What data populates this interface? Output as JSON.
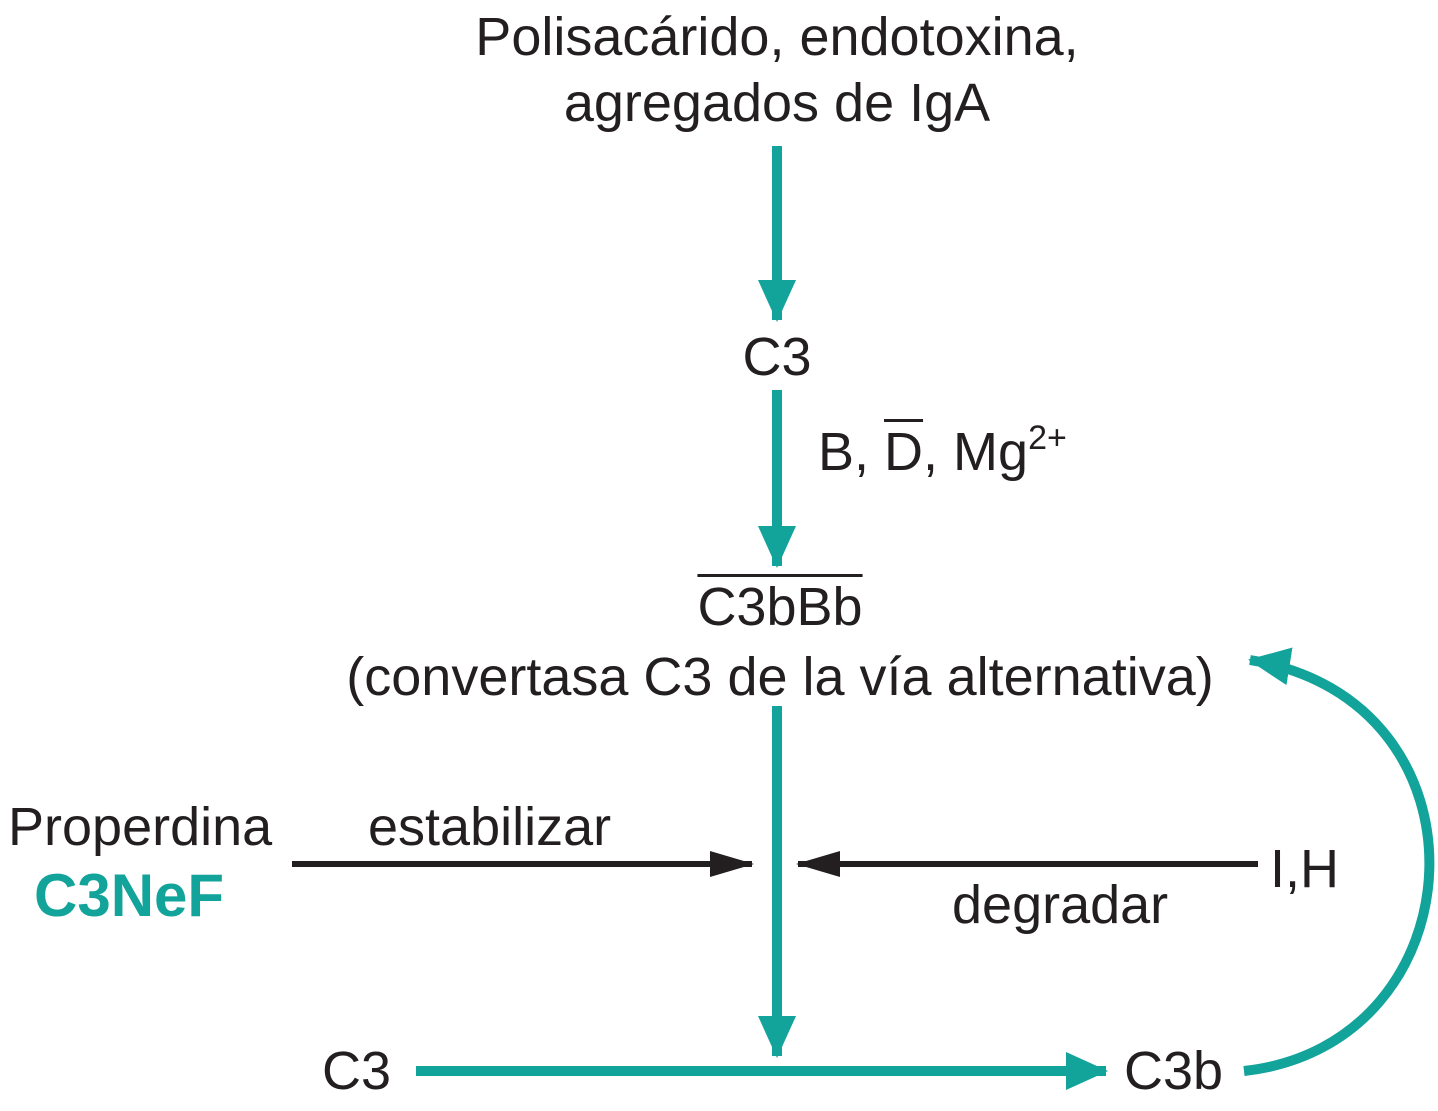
{
  "colors": {
    "teal": "#12a39a",
    "black": "#231f20",
    "background": "#ffffff"
  },
  "nodes": {
    "source_line1": "Polisacárido, endotoxina,",
    "source_line2": "agregados de IgA",
    "c3_top": "C3",
    "cofactors_b": "B, ",
    "cofactors_d": "D",
    "cofactors_mg": ", Mg",
    "cofactors_mg_sup": "2+",
    "convertase": "C3bBb",
    "convertase_desc": "(convertasa C3 de la vía alternativa)",
    "properdina": "Properdina",
    "c3nef": "C3NeF",
    "stabilize": "estabilizar",
    "degrade": "degradar",
    "inhibitors": "I,H",
    "c3_bottom": "C3",
    "c3b": "C3b"
  }
}
